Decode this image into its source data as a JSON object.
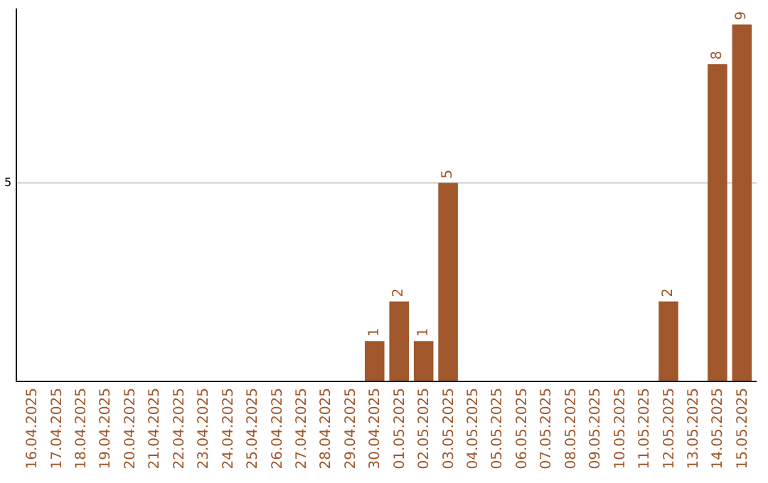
{
  "chart_data": {
    "type": "bar",
    "categories": [
      "16.04.2025",
      "17.04.2025",
      "18.04.2025",
      "19.04.2025",
      "20.04.2025",
      "21.04.2025",
      "22.04.2025",
      "23.04.2025",
      "24.04.2025",
      "25.04.2025",
      "26.04.2025",
      "27.04.2025",
      "28.04.2025",
      "29.04.2025",
      "30.04.2025",
      "01.05.2025",
      "02.05.2025",
      "03.05.2025",
      "04.05.2025",
      "05.05.2025",
      "06.05.2025",
      "07.05.2025",
      "08.05.2025",
      "09.05.2025",
      "10.05.2025",
      "11.05.2025",
      "12.05.2025",
      "13.05.2025",
      "14.05.2025",
      "15.05.2025"
    ],
    "values": [
      null,
      null,
      null,
      null,
      null,
      null,
      null,
      null,
      null,
      null,
      null,
      null,
      null,
      null,
      1,
      2,
      1,
      5,
      null,
      null,
      null,
      null,
      null,
      null,
      null,
      null,
      2,
      null,
      8,
      9
    ],
    "value_labels": [
      null,
      null,
      null,
      null,
      null,
      null,
      null,
      null,
      null,
      null,
      null,
      null,
      null,
      null,
      "1",
      "2",
      "1",
      "5",
      null,
      null,
      null,
      null,
      null,
      null,
      null,
      null,
      "2",
      null,
      "8",
      "9"
    ],
    "color": "#a0572b",
    "ref_lines": [
      {
        "axis": "y",
        "value": 5,
        "label": "5",
        "color": "#cccccc"
      }
    ],
    "legend": false
  }
}
